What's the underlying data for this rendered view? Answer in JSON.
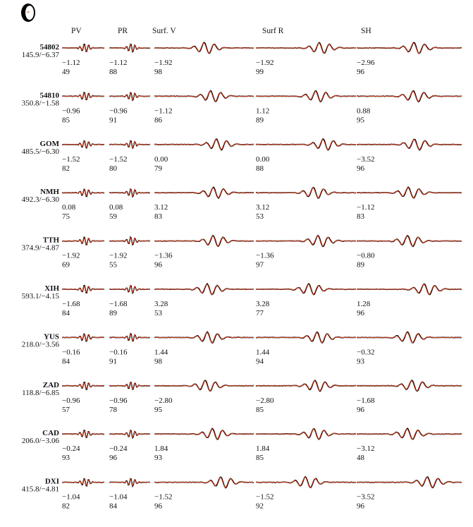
{
  "headers": [
    "PV",
    "PR",
    "Surf. V",
    "Surf R",
    "SH"
  ],
  "stations": [
    {
      "name": "54802",
      "info": "145.9/−6.37",
      "panels": [
        {
          "shift": "−1.12",
          "cc": 49
        },
        {
          "shift": "−1.12",
          "cc": 88
        },
        {
          "shift": "−1.92",
          "cc": 98
        },
        {
          "shift": "−1.92",
          "cc": 99
        },
        {
          "shift": "−2.96",
          "cc": 96
        }
      ]
    },
    {
      "name": "54810",
      "info": "350.8/−1.58",
      "panels": [
        {
          "shift": "−0.96",
          "cc": 85
        },
        {
          "shift": "−0.96",
          "cc": 91
        },
        {
          "shift": "−1.12",
          "cc": 86
        },
        {
          "shift": "1.12",
          "cc": 89
        },
        {
          "shift": "0.88",
          "cc": 95
        }
      ]
    },
    {
      "name": "GOM",
      "info": "485.5/−6.30",
      "panels": [
        {
          "shift": "−1.52",
          "cc": 82
        },
        {
          "shift": "−1.52",
          "cc": 80
        },
        {
          "shift": "0.00",
          "cc": 79
        },
        {
          "shift": "0.00",
          "cc": 88
        },
        {
          "shift": "−3.52",
          "cc": 96
        }
      ]
    },
    {
      "name": "NMH",
      "info": "492.3/−6.30",
      "panels": [
        {
          "shift": "0.08",
          "cc": 75
        },
        {
          "shift": "0.08",
          "cc": 59
        },
        {
          "shift": "3.12",
          "cc": 83
        },
        {
          "shift": "3.12",
          "cc": 53
        },
        {
          "shift": "−1.12",
          "cc": 83
        }
      ]
    },
    {
      "name": "TTH",
      "info": "374.9/−4.87",
      "panels": [
        {
          "shift": "−1.92",
          "cc": 69
        },
        {
          "shift": "−1.92",
          "cc": 55
        },
        {
          "shift": "−1.36",
          "cc": 96
        },
        {
          "shift": "−1.36",
          "cc": 97
        },
        {
          "shift": "−0.80",
          "cc": 89
        }
      ]
    },
    {
      "name": "XIH",
      "info": "593.1/−4.15",
      "panels": [
        {
          "shift": "−1.68",
          "cc": 84
        },
        {
          "shift": "−1.68",
          "cc": 89
        },
        {
          "shift": "3.28",
          "cc": 53
        },
        {
          "shift": "3.28",
          "cc": 77
        },
        {
          "shift": "1.28",
          "cc": 96
        }
      ]
    },
    {
      "name": "YUS",
      "info": "218.0/−3.56",
      "panels": [
        {
          "shift": "−0.16",
          "cc": 84
        },
        {
          "shift": "−0.16",
          "cc": 91
        },
        {
          "shift": "1.44",
          "cc": 98
        },
        {
          "shift": "1.44",
          "cc": 94
        },
        {
          "shift": "−0.32",
          "cc": 93
        }
      ]
    },
    {
      "name": "ZAD",
      "info": "118.8/−6.85",
      "panels": [
        {
          "shift": "−0.96",
          "cc": 57
        },
        {
          "shift": "−0.96",
          "cc": 78
        },
        {
          "shift": "−2.80",
          "cc": 95
        },
        {
          "shift": "−2.80",
          "cc": 85
        },
        {
          "shift": "−1.68",
          "cc": 96
        }
      ]
    },
    {
      "name": "CAD",
      "info": "206.0/−3.06",
      "panels": [
        {
          "shift": "−0.24",
          "cc": 93
        },
        {
          "shift": "−0.24",
          "cc": 96
        },
        {
          "shift": "1.84",
          "cc": 93
        },
        {
          "shift": "1.84",
          "cc": 85
        },
        {
          "shift": "−3.12",
          "cc": 48
        }
      ]
    },
    {
      "name": "DXI",
      "info": "415.8/−4.81",
      "panels": [
        {
          "shift": "−1.04",
          "cc": 82
        },
        {
          "shift": "−1.04",
          "cc": 84
        },
        {
          "shift": "−1.52",
          "cc": 96
        },
        {
          "shift": "−1.52",
          "cc": 92
        },
        {
          "shift": "−3.52",
          "cc": 96
        }
      ]
    }
  ]
}
